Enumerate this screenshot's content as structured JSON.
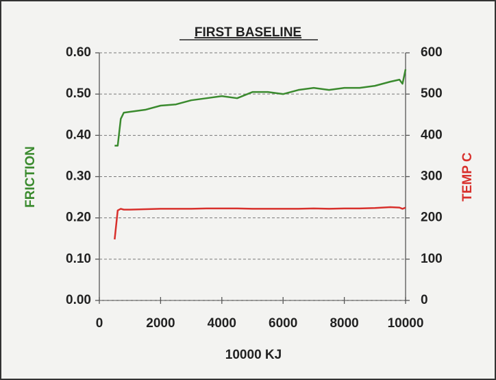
{
  "chart_data": {
    "type": "line",
    "title": "FIRST BASELINE",
    "x_label": "10000 KJ",
    "y_label": "FRICTION",
    "y2_label": "TEMP C",
    "x": [
      500,
      600,
      700,
      800,
      1000,
      1500,
      2000,
      2500,
      3000,
      3500,
      4000,
      4500,
      5000,
      5500,
      6000,
      6500,
      7000,
      7500,
      8000,
      8500,
      9000,
      9500,
      9800,
      9900,
      10000
    ],
    "series": [
      {
        "name": "FRICTION",
        "color": "#3a8a2e",
        "values": [
          0.375,
          0.375,
          0.44,
          0.455,
          0.457,
          0.462,
          0.472,
          0.475,
          0.485,
          0.49,
          0.495,
          0.49,
          0.505,
          0.505,
          0.5,
          0.51,
          0.515,
          0.51,
          0.515,
          0.515,
          0.52,
          0.53,
          0.535,
          0.525,
          0.56
        ]
      },
      {
        "name": "TEMP C",
        "color": "#d8302c",
        "axis": "y2",
        "values": [
          148,
          218,
          222,
          220,
          220,
          221,
          222,
          222,
          222,
          223,
          223,
          223,
          222,
          222,
          222,
          222,
          223,
          222,
          223,
          223,
          224,
          226,
          225,
          222,
          225
        ]
      }
    ],
    "xlim": [
      0,
      10000
    ],
    "xticks": [
      0,
      2000,
      4000,
      6000,
      8000,
      10000
    ],
    "ylim": [
      0,
      0.6
    ],
    "yticks": [
      {
        "value": 0,
        "label": "0.00"
      },
      {
        "value": 0.1,
        "label": "0.10"
      },
      {
        "value": 0.2,
        "label": "0.20"
      },
      {
        "value": 0.3,
        "label": "0.30"
      },
      {
        "value": 0.4,
        "label": "0.40"
      },
      {
        "value": 0.5,
        "label": "0.50"
      },
      {
        "value": 0.6,
        "label": "0.60"
      }
    ],
    "y2lim": [
      0,
      600
    ],
    "y2ticks": [
      0,
      100,
      200,
      300,
      400,
      500,
      600
    ],
    "grid": true
  }
}
